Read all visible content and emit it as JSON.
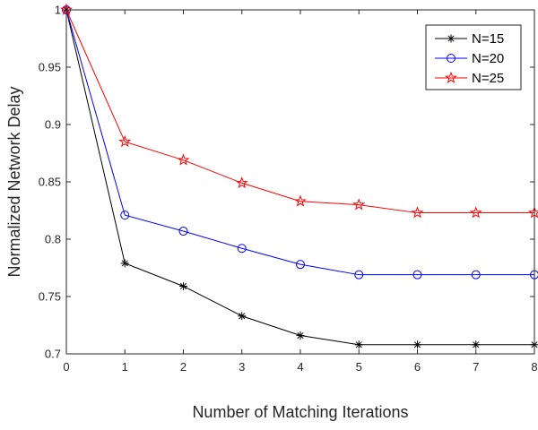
{
  "chart_data": {
    "type": "line",
    "title": "",
    "xlabel": "Number of Matching Iterations",
    "ylabel": "Normalized Network Delay",
    "x": [
      0,
      1,
      2,
      3,
      4,
      5,
      6,
      7,
      8
    ],
    "xlim": [
      0,
      8
    ],
    "ylim": [
      0.7,
      1.0
    ],
    "xticks": [
      "0",
      "1",
      "2",
      "3",
      "4",
      "5",
      "6",
      "7",
      "8"
    ],
    "yticks": [
      "0.7",
      "0.75",
      "0.8",
      "0.85",
      "0.9",
      "0.95",
      "1"
    ],
    "grid": false,
    "legend_position": "top-right",
    "series": [
      {
        "name": "N=15",
        "color": "#000000",
        "marker": "asterisk",
        "values": [
          1.0,
          0.779,
          0.759,
          0.733,
          0.716,
          0.708,
          0.708,
          0.708,
          0.708
        ]
      },
      {
        "name": "N=20",
        "color": "#0000ff",
        "marker": "circle",
        "values": [
          1.0,
          0.821,
          0.807,
          0.792,
          0.778,
          0.769,
          0.769,
          0.769,
          0.769
        ]
      },
      {
        "name": "N=25",
        "color": "#ff0000",
        "marker": "star",
        "values": [
          1.0,
          0.885,
          0.869,
          0.849,
          0.833,
          0.83,
          0.823,
          0.823,
          0.823
        ]
      }
    ]
  }
}
